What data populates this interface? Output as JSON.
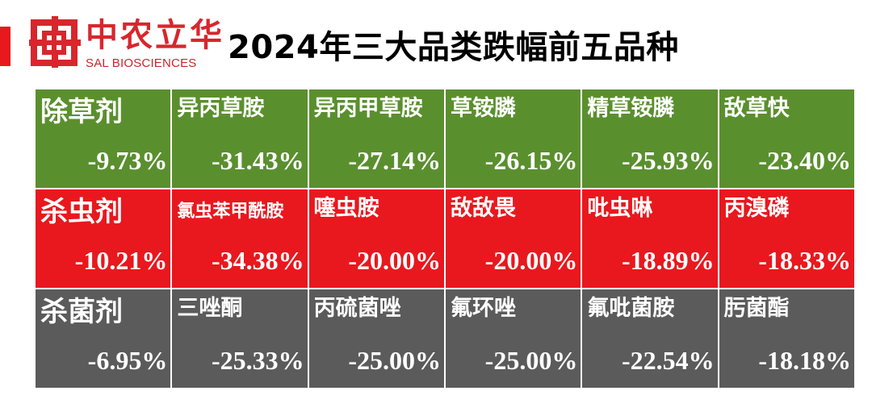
{
  "logo": {
    "cn": "中农立华",
    "en": "SAL BIOSCIENCES"
  },
  "title": "2024年三大品类跌幅前五品种",
  "colors": {
    "herbicide": "#5a8f2e",
    "insecticide": "#e8181e",
    "fungicide": "#5b5b5b",
    "accent": "#e8181e"
  },
  "chart_data": {
    "type": "table",
    "rows": [
      {
        "category": "除草剂",
        "category_change": "-9.73%",
        "items": [
          {
            "name": "异丙草胺",
            "change": "-31.43%"
          },
          {
            "name": "异丙甲草胺",
            "change": "-27.14%"
          },
          {
            "name": "草铵膦",
            "change": "-26.15%"
          },
          {
            "name": "精草铵膦",
            "change": "-25.93%"
          },
          {
            "name": "敌草快",
            "change": "-23.40%"
          }
        ]
      },
      {
        "category": "杀虫剂",
        "category_change": "-10.21%",
        "items": [
          {
            "name": "氯虫苯甲酰胺",
            "change": "-34.38%"
          },
          {
            "name": "噻虫胺",
            "change": "-20.00%"
          },
          {
            "name": "敌敌畏",
            "change": "-20.00%"
          },
          {
            "name": "吡虫啉",
            "change": "-18.89%"
          },
          {
            "name": "丙溴磷",
            "change": "-18.33%"
          }
        ]
      },
      {
        "category": "杀菌剂",
        "category_change": "-6.95%",
        "items": [
          {
            "name": "三唑酮",
            "change": "-25.33%"
          },
          {
            "name": "丙硫菌唑",
            "change": "-25.00%"
          },
          {
            "name": "氟环唑",
            "change": "-25.00%"
          },
          {
            "name": "氟吡菌胺",
            "change": "-22.54%"
          },
          {
            "name": "肟菌酯",
            "change": "-18.18%"
          }
        ]
      }
    ]
  }
}
